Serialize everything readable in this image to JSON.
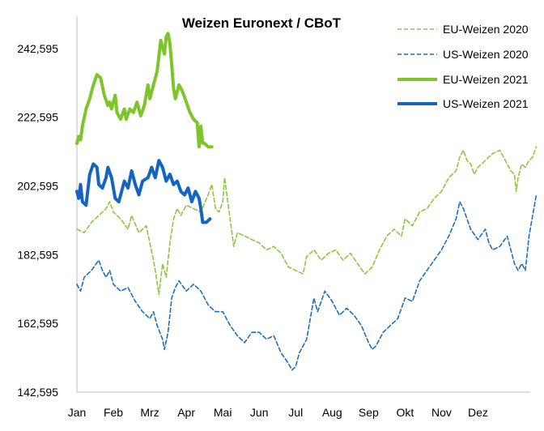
{
  "chart_data": {
    "type": "line",
    "title": "Weizen Euronext / CBoT",
    "xlabel": "",
    "ylabel": "",
    "x_tick_labels": [
      "Jan",
      "Feb",
      "Mrz",
      "Apr",
      "Mai",
      "Jun",
      "Jul",
      "Aug",
      "Sep",
      "Okt",
      "Nov",
      "Dez"
    ],
    "y_tick_labels": [
      "142,595",
      "162,595",
      "182,595",
      "202,595",
      "222,595",
      "242,595"
    ],
    "y_ticks": [
      142.595,
      162.595,
      182.595,
      202.595,
      222.595,
      242.595
    ],
    "ylim": [
      142.595,
      252
    ],
    "xlim": [
      0,
      12.3
    ],
    "grid": false,
    "legend_position": "top-right",
    "series": [
      {
        "name": "EU-Weizen 2020",
        "color": "#8CC63F",
        "style": "dashed",
        "points": [
          [
            0,
            190
          ],
          [
            0.2,
            189
          ],
          [
            0.4,
            192
          ],
          [
            0.6,
            194
          ],
          [
            0.8,
            196
          ],
          [
            0.9,
            198
          ],
          [
            1.0,
            195
          ],
          [
            1.2,
            193
          ],
          [
            1.4,
            190
          ],
          [
            1.5,
            194
          ],
          [
            1.7,
            189
          ],
          [
            1.9,
            191
          ],
          [
            2.0,
            186
          ],
          [
            2.1,
            181
          ],
          [
            2.15,
            178
          ],
          [
            2.25,
            171
          ],
          [
            2.35,
            180
          ],
          [
            2.45,
            176
          ],
          [
            2.55,
            186
          ],
          [
            2.65,
            193
          ],
          [
            2.75,
            196
          ],
          [
            2.85,
            194
          ],
          [
            3.0,
            197
          ],
          [
            3.2,
            196
          ],
          [
            3.4,
            195
          ],
          [
            3.6,
            200
          ],
          [
            3.7,
            203
          ],
          [
            3.8,
            196
          ],
          [
            3.9,
            195
          ],
          [
            4.0,
            198
          ],
          [
            4.05,
            205
          ],
          [
            4.1,
            201
          ],
          [
            4.2,
            193
          ],
          [
            4.3,
            185
          ],
          [
            4.4,
            189
          ],
          [
            4.6,
            188
          ],
          [
            4.8,
            187
          ],
          [
            5.0,
            186
          ],
          [
            5.2,
            184
          ],
          [
            5.4,
            185
          ],
          [
            5.6,
            183
          ],
          [
            5.8,
            179
          ],
          [
            6.0,
            178
          ],
          [
            6.2,
            177
          ],
          [
            6.3,
            182
          ],
          [
            6.5,
            184
          ],
          [
            6.7,
            181
          ],
          [
            6.9,
            183
          ],
          [
            7.1,
            184
          ],
          [
            7.3,
            181
          ],
          [
            7.5,
            183
          ],
          [
            7.7,
            180
          ],
          [
            7.9,
            177
          ],
          [
            8.1,
            179
          ],
          [
            8.3,
            184
          ],
          [
            8.5,
            188
          ],
          [
            8.7,
            190
          ],
          [
            8.9,
            188
          ],
          [
            9.0,
            193
          ],
          [
            9.2,
            191
          ],
          [
            9.4,
            195
          ],
          [
            9.6,
            196
          ],
          [
            9.8,
            199
          ],
          [
            10.0,
            201
          ],
          [
            10.2,
            205
          ],
          [
            10.4,
            207
          ],
          [
            10.5,
            211
          ],
          [
            10.6,
            213
          ],
          [
            10.7,
            210
          ],
          [
            10.8,
            209
          ],
          [
            10.9,
            206
          ],
          [
            11.0,
            208
          ],
          [
            11.2,
            210
          ],
          [
            11.4,
            212
          ],
          [
            11.6,
            213
          ],
          [
            11.8,
            209
          ],
          [
            11.9,
            207
          ],
          [
            12.0,
            206
          ],
          [
            12.05,
            201
          ],
          [
            12.1,
            205
          ],
          [
            12.2,
            209
          ],
          [
            12.3,
            208
          ],
          [
            12.4,
            210
          ],
          [
            12.5,
            211
          ],
          [
            12.6,
            214
          ]
        ]
      },
      {
        "name": "US-Weizen 2020",
        "color": "#1E6FBA",
        "style": "dashed",
        "points": [
          [
            0,
            174
          ],
          [
            0.1,
            172
          ],
          [
            0.2,
            176
          ],
          [
            0.4,
            178
          ],
          [
            0.6,
            181
          ],
          [
            0.7,
            178
          ],
          [
            0.8,
            176
          ],
          [
            0.9,
            178
          ],
          [
            1.0,
            174
          ],
          [
            1.2,
            172
          ],
          [
            1.4,
            173
          ],
          [
            1.6,
            169
          ],
          [
            1.8,
            166
          ],
          [
            2.0,
            164
          ],
          [
            2.1,
            166
          ],
          [
            2.2,
            162
          ],
          [
            2.35,
            158
          ],
          [
            2.4,
            155
          ],
          [
            2.5,
            160
          ],
          [
            2.6,
            170
          ],
          [
            2.7,
            173
          ],
          [
            2.8,
            175
          ],
          [
            3.0,
            172
          ],
          [
            3.2,
            174
          ],
          [
            3.4,
            172
          ],
          [
            3.6,
            168
          ],
          [
            3.8,
            166
          ],
          [
            4.0,
            166
          ],
          [
            4.2,
            162
          ],
          [
            4.4,
            159
          ],
          [
            4.6,
            157
          ],
          [
            4.8,
            160
          ],
          [
            5.0,
            160
          ],
          [
            5.2,
            158
          ],
          [
            5.4,
            159
          ],
          [
            5.6,
            154
          ],
          [
            5.8,
            151
          ],
          [
            5.9,
            149
          ],
          [
            6.0,
            150
          ],
          [
            6.1,
            154
          ],
          [
            6.2,
            156
          ],
          [
            6.3,
            158
          ],
          [
            6.4,
            164
          ],
          [
            6.5,
            170
          ],
          [
            6.6,
            166
          ],
          [
            6.8,
            172
          ],
          [
            7.0,
            169
          ],
          [
            7.2,
            165
          ],
          [
            7.4,
            167
          ],
          [
            7.6,
            165
          ],
          [
            7.8,
            162
          ],
          [
            8.0,
            157
          ],
          [
            8.1,
            155
          ],
          [
            8.2,
            156
          ],
          [
            8.4,
            160
          ],
          [
            8.6,
            162
          ],
          [
            8.8,
            164
          ],
          [
            9.0,
            170
          ],
          [
            9.2,
            169
          ],
          [
            9.4,
            175
          ],
          [
            9.6,
            178
          ],
          [
            9.8,
            181
          ],
          [
            10.0,
            184
          ],
          [
            10.2,
            188
          ],
          [
            10.4,
            193
          ],
          [
            10.5,
            198
          ],
          [
            10.6,
            196
          ],
          [
            10.8,
            190
          ],
          [
            11.0,
            187
          ],
          [
            11.2,
            190
          ],
          [
            11.3,
            186
          ],
          [
            11.4,
            184
          ],
          [
            11.6,
            185
          ],
          [
            11.8,
            188
          ],
          [
            11.9,
            184
          ],
          [
            12.0,
            180
          ],
          [
            12.1,
            178
          ],
          [
            12.2,
            180
          ],
          [
            12.3,
            178
          ],
          [
            12.4,
            188
          ],
          [
            12.5,
            194
          ],
          [
            12.6,
            200
          ]
        ]
      },
      {
        "name": "EU-Weizen 2021",
        "color": "#7DC52B",
        "style": "solid",
        "points": [
          [
            0,
            215
          ],
          [
            0.05,
            217
          ],
          [
            0.1,
            216
          ],
          [
            0.15,
            220
          ],
          [
            0.25,
            225
          ],
          [
            0.35,
            228
          ],
          [
            0.45,
            232
          ],
          [
            0.55,
            235
          ],
          [
            0.65,
            234
          ],
          [
            0.75,
            229
          ],
          [
            0.85,
            226
          ],
          [
            0.9,
            227
          ],
          [
            0.95,
            225
          ],
          [
            1.05,
            229
          ],
          [
            1.1,
            224
          ],
          [
            1.2,
            222
          ],
          [
            1.3,
            225
          ],
          [
            1.35,
            222
          ],
          [
            1.45,
            225
          ],
          [
            1.55,
            224
          ],
          [
            1.65,
            227
          ],
          [
            1.75,
            223
          ],
          [
            1.85,
            226
          ],
          [
            1.95,
            232
          ],
          [
            2.0,
            228
          ],
          [
            2.1,
            232
          ],
          [
            2.2,
            236
          ],
          [
            2.3,
            245
          ],
          [
            2.4,
            241
          ],
          [
            2.45,
            246
          ],
          [
            2.5,
            247
          ],
          [
            2.55,
            244
          ],
          [
            2.6,
            238
          ],
          [
            2.65,
            231
          ],
          [
            2.7,
            228
          ],
          [
            2.8,
            232
          ],
          [
            2.9,
            230
          ],
          [
            3.0,
            227
          ],
          [
            3.1,
            224
          ],
          [
            3.2,
            222
          ],
          [
            3.3,
            221
          ],
          [
            3.35,
            214
          ],
          [
            3.4,
            220
          ],
          [
            3.45,
            215
          ],
          [
            3.5,
            215
          ],
          [
            3.6,
            214
          ],
          [
            3.7,
            214
          ]
        ]
      },
      {
        "name": "US-Weizen 2021",
        "color": "#1565C0",
        "style": "solid",
        "points": [
          [
            0,
            201
          ],
          [
            0.05,
            199
          ],
          [
            0.1,
            203
          ],
          [
            0.15,
            198
          ],
          [
            0.25,
            197
          ],
          [
            0.35,
            206
          ],
          [
            0.45,
            209
          ],
          [
            0.55,
            208
          ],
          [
            0.6,
            203
          ],
          [
            0.7,
            202
          ],
          [
            0.8,
            205
          ],
          [
            0.85,
            208
          ],
          [
            0.95,
            205
          ],
          [
            1.05,
            199
          ],
          [
            1.15,
            198
          ],
          [
            1.3,
            204
          ],
          [
            1.4,
            202
          ],
          [
            1.5,
            207
          ],
          [
            1.6,
            203
          ],
          [
            1.7,
            200
          ],
          [
            1.8,
            204
          ],
          [
            1.95,
            205
          ],
          [
            2.05,
            208
          ],
          [
            2.15,
            205
          ],
          [
            2.25,
            210
          ],
          [
            2.3,
            209
          ],
          [
            2.35,
            208
          ],
          [
            2.45,
            204
          ],
          [
            2.55,
            206
          ],
          [
            2.65,
            203
          ],
          [
            2.75,
            204
          ],
          [
            2.85,
            201
          ],
          [
            2.95,
            200
          ],
          [
            3.05,
            202
          ],
          [
            3.15,
            198
          ],
          [
            3.25,
            201
          ],
          [
            3.35,
            199
          ],
          [
            3.4,
            196
          ],
          [
            3.45,
            192
          ],
          [
            3.55,
            192
          ],
          [
            3.65,
            193
          ]
        ]
      }
    ]
  }
}
